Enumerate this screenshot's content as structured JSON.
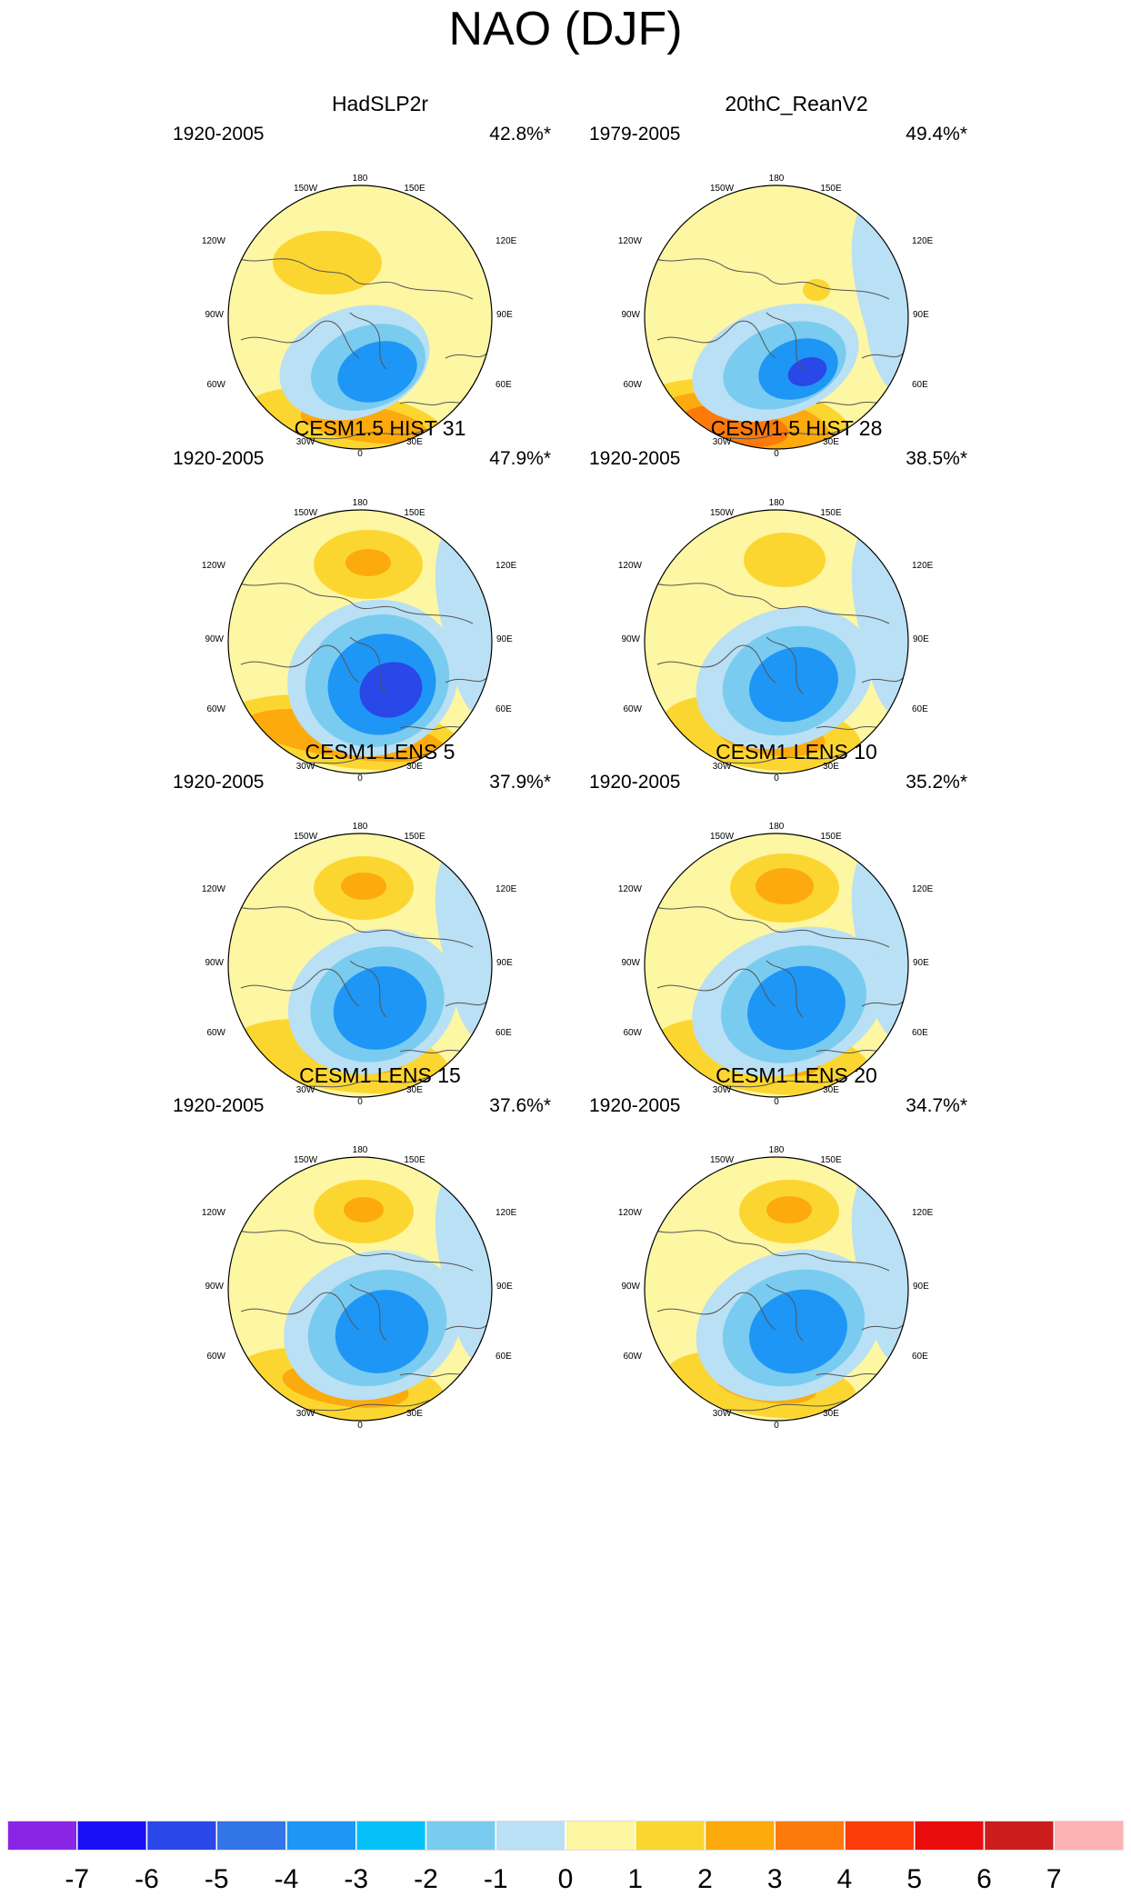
{
  "title": "NAO (DJF)",
  "lon_labels": {
    "top": "180",
    "top_left": "150W",
    "top_right": "150E",
    "upper_left": "120W",
    "upper_right": "120E",
    "left": "90W",
    "right": "90E",
    "lower_left": "60W",
    "lower_right": "60E",
    "bottom_left": "30W",
    "bottom_right": "30E",
    "bottom": "0"
  },
  "panels": [
    {
      "name": "HadSLP2r",
      "period": "1920-2005",
      "variance": "42.8%*"
    },
    {
      "name": "20thC_ReanV2",
      "period": "1979-2005",
      "variance": "49.4%*"
    },
    {
      "name": "CESM1.5 HIST 31",
      "period": "1920-2005",
      "variance": "47.9%*"
    },
    {
      "name": "CESM1.5 HIST 28",
      "period": "1920-2005",
      "variance": "38.5%*"
    },
    {
      "name": "CESM1 LENS 5",
      "period": "1920-2005",
      "variance": "37.9%*"
    },
    {
      "name": "CESM1 LENS 10",
      "period": "1920-2005",
      "variance": "35.2%*"
    },
    {
      "name": "CESM1 LENS 15",
      "period": "1920-2005",
      "variance": "37.6%*"
    },
    {
      "name": "CESM1 LENS 20",
      "period": "1920-2005",
      "variance": "34.7%*"
    }
  ],
  "colorbar": {
    "labels": [
      "-7",
      "-6",
      "-5",
      "-4",
      "-3",
      "-2",
      "-1",
      "0",
      "1",
      "2",
      "3",
      "4",
      "5",
      "6",
      "7"
    ],
    "colors": [
      "#8b25e6",
      "#1a10f5",
      "#2a47e8",
      "#3275e6",
      "#1e96f5",
      "#06c0f8",
      "#7acbf0",
      "#b9e0f4",
      "#fdf6a2",
      "#fcd630",
      "#fcaa0d",
      "#fb7a0b",
      "#fc3b0b",
      "#e90d0d",
      "#cc1d1d",
      "#fcb3b3"
    ]
  }
}
